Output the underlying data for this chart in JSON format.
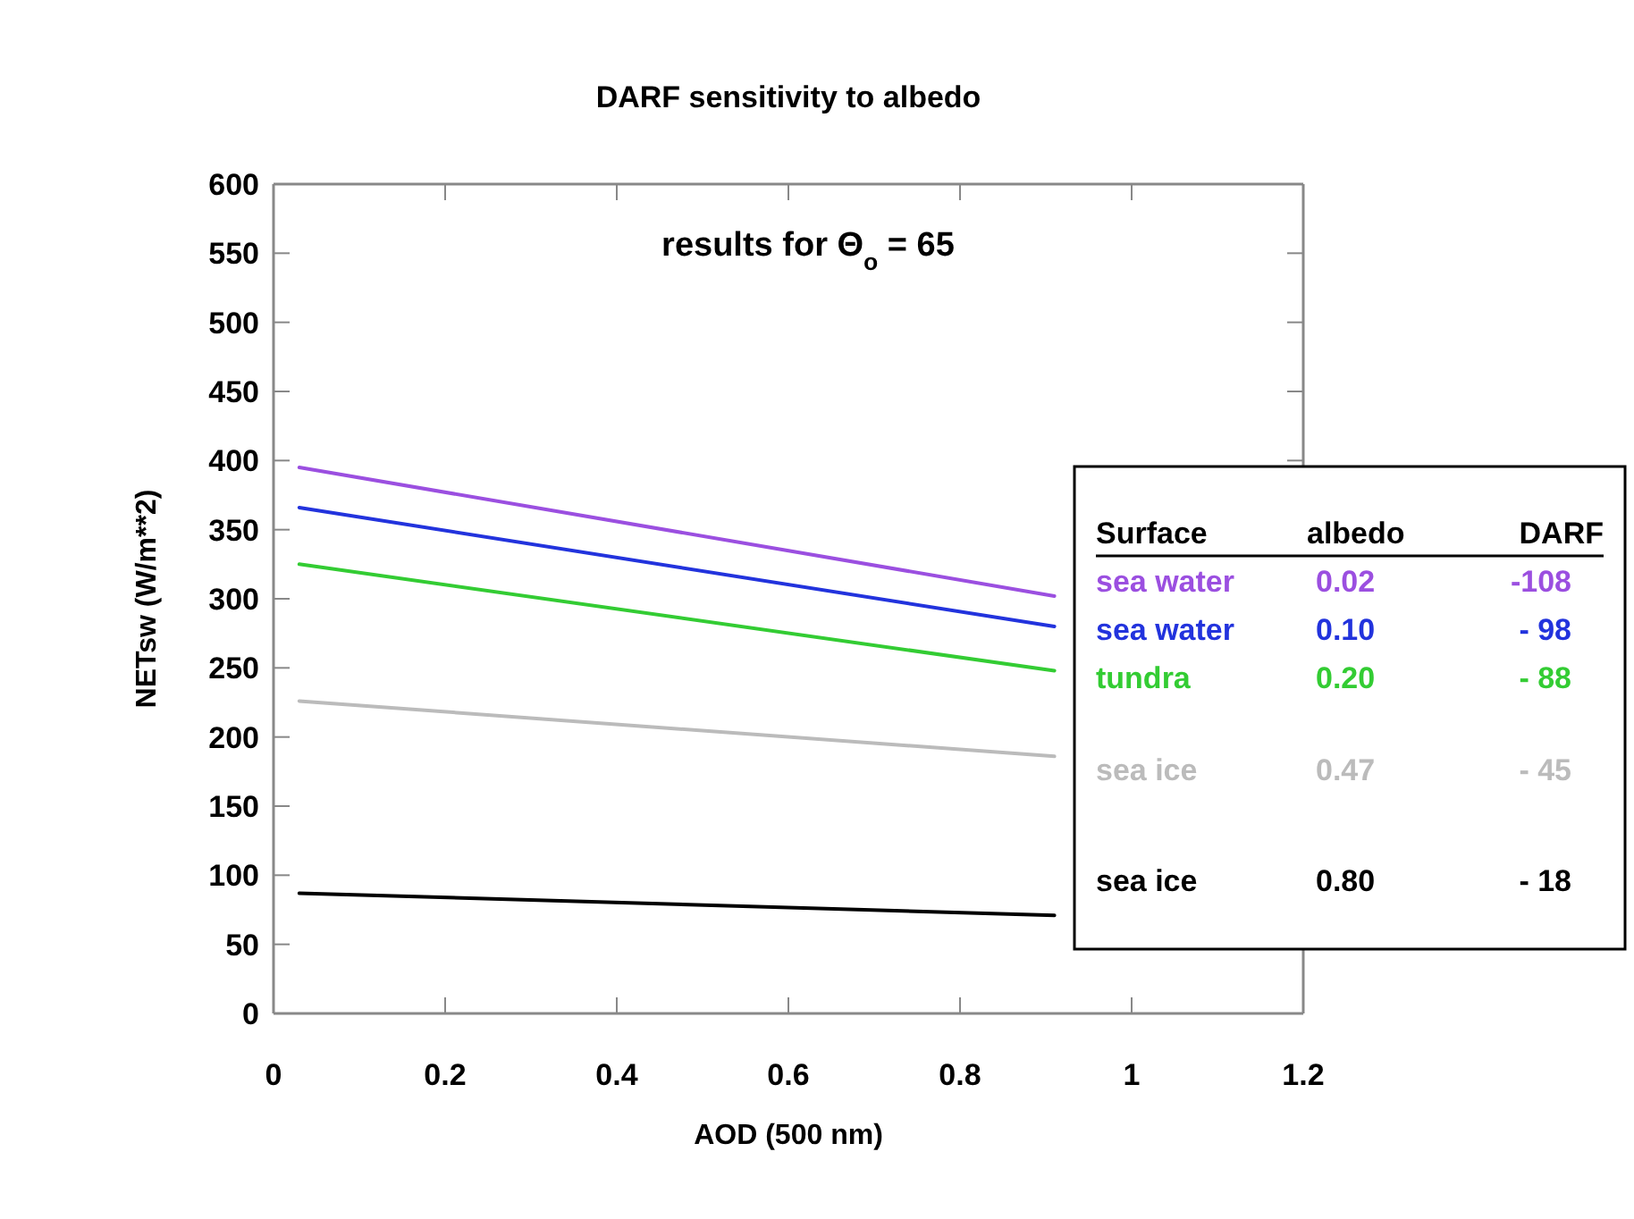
{
  "chart_data": {
    "type": "line",
    "title": "DARF  sensitivity to albedo",
    "subtitle": "results for Θ$_{o}$ = 65",
    "xlabel": "AOD  (500 nm)",
    "ylabel": "NETsw  (W/m**2)",
    "x": [
      0.03,
      0.91
    ],
    "series": [
      {
        "name": "sea water",
        "color": "#9b4fe0",
        "values": [
          395,
          302
        ]
      },
      {
        "name": "sea water",
        "color": "#2233dd",
        "values": [
          366,
          280
        ]
      },
      {
        "name": "tundra",
        "color": "#33cc33",
        "values": [
          325,
          248
        ]
      },
      {
        "name": "sea ice",
        "color": "#bbbbbb",
        "values": [
          226,
          186
        ]
      },
      {
        "name": "sea ice",
        "color": "#000000",
        "values": [
          87,
          71
        ]
      }
    ],
    "legend_title": "Surface",
    "annotations": [
      "albedo",
      "DARF",
      "0.02",
      "-108",
      "0.10",
      "- 98",
      "0.20",
      "- 88",
      "0.47",
      "- 45",
      "0.80",
      "- 18"
    ],
    "legend": "right",
    "xlim": [
      0,
      1.2
    ],
    "xticks": [
      0,
      0.2,
      0.4,
      0.6,
      0.8,
      1,
      1.2
    ],
    "ylim": [
      0,
      600
    ],
    "yticks": [
      0,
      50,
      100,
      150,
      200,
      250,
      300,
      350,
      400,
      450,
      500,
      550,
      600
    ]
  }
}
